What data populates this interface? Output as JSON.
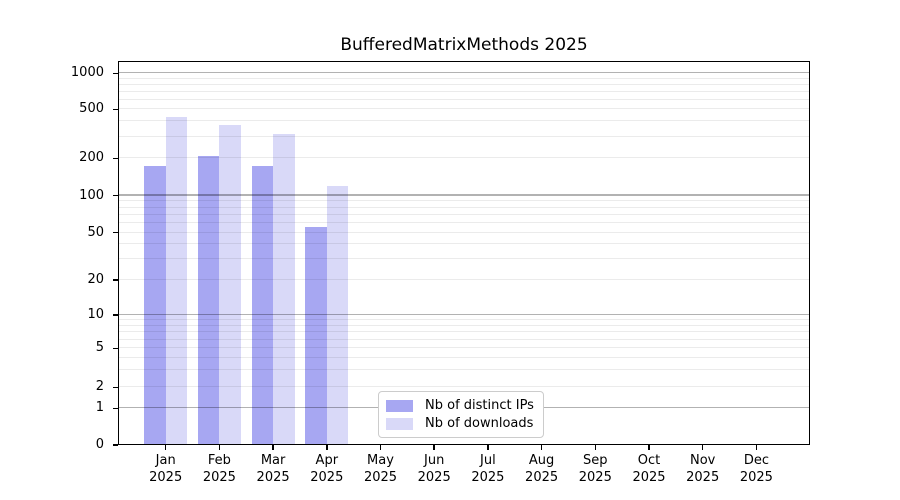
{
  "figure": {
    "title": "BufferedMatrixMethods 2025"
  },
  "chart_data": {
    "type": "bar",
    "title": "BufferedMatrixMethods 2025",
    "months": [
      "Jan",
      "Feb",
      "Mar",
      "Apr",
      "May",
      "Jun",
      "Jul",
      "Aug",
      "Sep",
      "Oct",
      "Nov",
      "Dec"
    ],
    "year": "2025",
    "series": [
      {
        "name": "Nb of distinct IPs",
        "color": "#a7a7f2",
        "values": [
          173,
          210,
          173,
          56,
          0,
          0,
          0,
          0,
          0,
          0,
          0,
          0
        ]
      },
      {
        "name": "Nb of downloads",
        "color": "#d9d9f8",
        "values": [
          435,
          375,
          315,
          119,
          0,
          0,
          0,
          0,
          0,
          0,
          0,
          0
        ]
      }
    ],
    "yticks": [
      0,
      1,
      2,
      5,
      10,
      20,
      50,
      100,
      200,
      500,
      1000
    ],
    "yscale": "log-like with 0 baseline",
    "ylim": [
      0,
      1260
    ],
    "grid": "horizontal major and minor gridlines",
    "legend_position": "lower center"
  }
}
